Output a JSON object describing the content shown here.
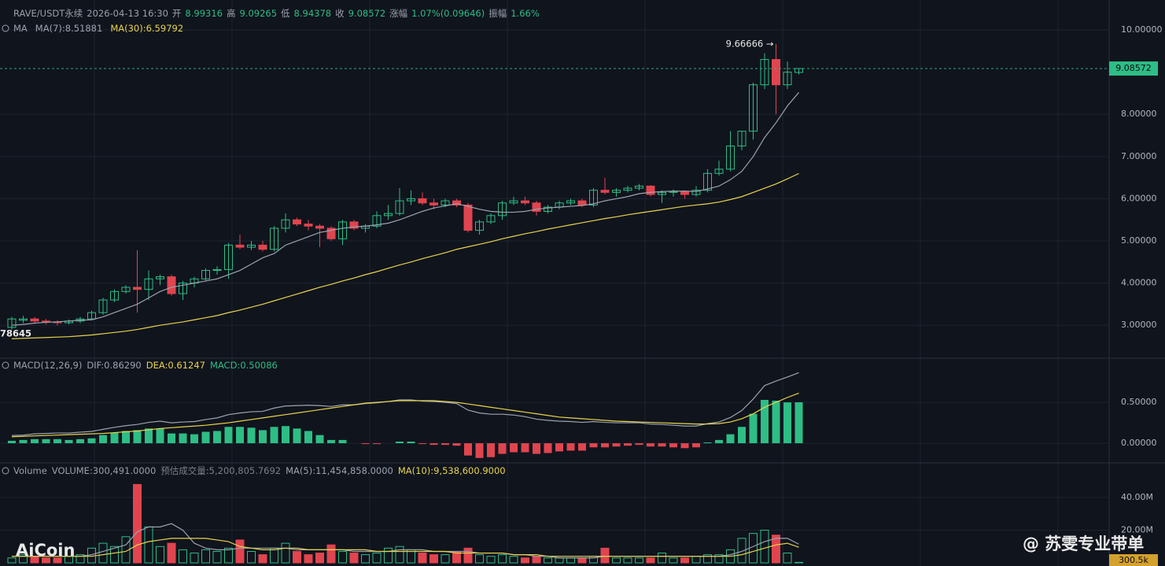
{
  "header": [
    "RAVE/USDT永续",
    "2026-04-13 16:30",
    "开",
    "8.99316",
    "高",
    "9.09265",
    "低",
    "8.94378",
    "收",
    "9.08572",
    "涨幅",
    "1.07%(0.09646)",
    "振幅",
    "1.66%"
  ],
  "watermarks": [
    "AiCoin",
    "@ 苏雯专业带单"
  ],
  "chart_data": [
    {
      "type": "candlestick",
      "title": "MA",
      "max_label": "9.66666 →",
      "min_label": "78645",
      "up_color": "#2ebd85",
      "down_color": "#e0454f",
      "grid": true,
      "ylim": [
        2.22,
        10.71
      ],
      "yticks": [
        {
          "value": 3,
          "label": "3.00000"
        },
        {
          "value": 4,
          "label": "4.00000"
        },
        {
          "value": 5,
          "label": "5.00000"
        },
        {
          "value": 6,
          "label": "6.00000"
        },
        {
          "value": 7,
          "label": "7.00000"
        },
        {
          "value": 8,
          "label": "8.00000"
        },
        {
          "value": 10,
          "label": "10.00000"
        }
      ],
      "candles": [
        [
          2.95,
          3.2,
          2.9,
          3.15
        ],
        [
          3.12,
          3.22,
          3.05,
          3.15
        ],
        [
          3.15,
          3.2,
          3.05,
          3.1
        ],
        [
          3.1,
          3.15,
          3.02,
          3.08
        ],
        [
          3.08,
          3.12,
          3.0,
          3.06
        ],
        [
          3.06,
          3.14,
          3.02,
          3.1
        ],
        [
          3.1,
          3.2,
          3.05,
          3.15
        ],
        [
          3.15,
          3.35,
          3.12,
          3.3
        ],
        [
          3.3,
          3.65,
          3.25,
          3.6
        ],
        [
          3.6,
          3.85,
          3.55,
          3.8
        ],
        [
          3.8,
          3.95,
          3.75,
          3.9
        ],
        [
          3.9,
          4.78,
          3.3,
          3.85
        ],
        [
          3.85,
          4.3,
          3.6,
          4.1
        ],
        [
          4.1,
          4.2,
          3.95,
          4.15
        ],
        [
          4.15,
          4.2,
          3.7,
          3.75
        ],
        [
          3.75,
          4.05,
          3.6,
          4.0
        ],
        [
          4.0,
          4.15,
          3.9,
          4.1
        ],
        [
          4.1,
          4.35,
          4.05,
          4.3
        ],
        [
          4.3,
          4.4,
          4.2,
          4.32
        ],
        [
          4.32,
          4.95,
          4.1,
          4.9
        ],
        [
          4.9,
          5.15,
          4.8,
          4.85
        ],
        [
          4.85,
          5.0,
          4.78,
          4.9
        ],
        [
          4.9,
          5.0,
          4.75,
          4.8
        ],
        [
          4.8,
          5.35,
          4.75,
          5.3
        ],
        [
          5.3,
          5.65,
          5.2,
          5.5
        ],
        [
          5.5,
          5.55,
          5.35,
          5.4
        ],
        [
          5.4,
          5.5,
          5.25,
          5.35
        ],
        [
          5.35,
          5.4,
          4.85,
          5.3
        ],
        [
          5.3,
          5.35,
          5.0,
          5.05
        ],
        [
          5.05,
          5.5,
          4.9,
          5.45
        ],
        [
          5.45,
          5.5,
          5.25,
          5.3
        ],
        [
          5.3,
          5.4,
          5.2,
          5.35
        ],
        [
          5.35,
          5.7,
          5.3,
          5.6
        ],
        [
          5.6,
          5.85,
          5.5,
          5.65
        ],
        [
          5.65,
          6.25,
          5.6,
          5.95
        ],
        [
          5.95,
          6.2,
          5.85,
          6.0
        ],
        [
          6.0,
          6.15,
          5.85,
          5.9
        ],
        [
          5.9,
          6.0,
          5.75,
          5.85
        ],
        [
          5.85,
          6.0,
          5.8,
          5.95
        ],
        [
          5.95,
          6.0,
          5.8,
          5.85
        ],
        [
          5.85,
          5.9,
          5.2,
          5.25
        ],
        [
          5.25,
          5.5,
          5.15,
          5.45
        ],
        [
          5.45,
          5.65,
          5.4,
          5.6
        ],
        [
          5.6,
          5.95,
          5.5,
          5.9
        ],
        [
          5.9,
          6.05,
          5.85,
          5.95
        ],
        [
          5.95,
          6.05,
          5.85,
          5.9
        ],
        [
          5.9,
          5.95,
          5.6,
          5.7
        ],
        [
          5.7,
          5.85,
          5.65,
          5.8
        ],
        [
          5.8,
          5.95,
          5.75,
          5.9
        ],
        [
          5.9,
          6.0,
          5.85,
          5.95
        ],
        [
          5.95,
          6.0,
          5.8,
          5.85
        ],
        [
          5.85,
          6.25,
          5.8,
          6.2
        ],
        [
          6.2,
          6.5,
          6.1,
          6.15
        ],
        [
          6.15,
          6.25,
          6.05,
          6.2
        ],
        [
          6.2,
          6.3,
          6.15,
          6.25
        ],
        [
          6.25,
          6.35,
          6.2,
          6.3
        ],
        [
          6.3,
          6.32,
          6.05,
          6.1
        ],
        [
          6.1,
          6.2,
          5.9,
          6.15
        ],
        [
          6.15,
          6.22,
          6.05,
          6.17
        ],
        [
          6.17,
          6.2,
          6.0,
          6.1
        ],
        [
          6.1,
          6.3,
          6.05,
          6.2
        ],
        [
          6.2,
          6.7,
          6.15,
          6.6
        ],
        [
          6.6,
          6.9,
          6.55,
          6.7
        ],
        [
          6.7,
          7.6,
          6.65,
          7.25
        ],
        [
          7.25,
          7.6,
          7.15,
          7.6
        ],
        [
          7.6,
          8.75,
          7.4,
          8.7
        ],
        [
          8.7,
          9.45,
          8.6,
          9.3
        ],
        [
          9.3,
          9.66666,
          8.0,
          8.7
        ],
        [
          8.7,
          9.25,
          8.6,
          9.0
        ],
        [
          8.99316,
          9.09265,
          8.94378,
          9.08572
        ]
      ],
      "series": [
        {
          "name": "MA(7):8.51881",
          "color": "#9ca3af",
          "values": [
            3.0,
            3.02,
            3.05,
            3.07,
            3.08,
            3.1,
            3.12,
            3.13,
            3.2,
            3.3,
            3.4,
            3.5,
            3.65,
            3.8,
            3.9,
            3.95,
            4.0,
            4.05,
            4.1,
            4.2,
            4.3,
            4.45,
            4.6,
            4.7,
            4.9,
            5.0,
            5.1,
            5.2,
            5.25,
            5.3,
            5.33,
            5.35,
            5.38,
            5.42,
            5.5,
            5.6,
            5.7,
            5.78,
            5.83,
            5.88,
            5.82,
            5.75,
            5.7,
            5.68,
            5.68,
            5.7,
            5.75,
            5.78,
            5.8,
            5.82,
            5.84,
            5.88,
            5.95,
            6.0,
            6.05,
            6.12,
            6.15,
            6.17,
            6.18,
            6.18,
            6.17,
            6.23,
            6.3,
            6.45,
            6.65,
            7.0,
            7.45,
            7.8,
            8.2,
            8.51881
          ]
        },
        {
          "name": "MA(30):6.59792",
          "color": "#e8d44d",
          "values": [
            2.68,
            2.69,
            2.7,
            2.71,
            2.72,
            2.73,
            2.75,
            2.77,
            2.8,
            2.83,
            2.86,
            2.9,
            2.95,
            3.0,
            3.04,
            3.08,
            3.13,
            3.18,
            3.23,
            3.3,
            3.36,
            3.43,
            3.5,
            3.58,
            3.66,
            3.74,
            3.82,
            3.9,
            3.97,
            4.05,
            4.12,
            4.2,
            4.27,
            4.35,
            4.43,
            4.5,
            4.58,
            4.65,
            4.72,
            4.8,
            4.86,
            4.92,
            4.98,
            5.05,
            5.11,
            5.17,
            5.22,
            5.28,
            5.33,
            5.38,
            5.43,
            5.48,
            5.53,
            5.57,
            5.62,
            5.66,
            5.7,
            5.74,
            5.78,
            5.82,
            5.85,
            5.88,
            5.92,
            5.98,
            6.05,
            6.15,
            6.25,
            6.35,
            6.47,
            6.59792
          ]
        }
      ]
    },
    {
      "type": "macd",
      "title": "MACD(12,26,9)",
      "histogram_name": "MACD:0.50086",
      "histogram_color": "#2ebd85",
      "up_color": "#2ebd85",
      "down_color": "#e0454f",
      "ylim": [
        -0.24,
        1.04
      ],
      "yticks": [
        {
          "value": 0,
          "label": "0.00000"
        },
        {
          "value": 0.5,
          "label": "0.50000"
        }
      ],
      "grid": true,
      "values": [
        0.03,
        0.04,
        0.05,
        0.05,
        0.05,
        0.04,
        0.05,
        0.06,
        0.1,
        0.13,
        0.15,
        0.16,
        0.18,
        0.18,
        0.12,
        0.12,
        0.11,
        0.14,
        0.15,
        0.2,
        0.2,
        0.19,
        0.16,
        0.2,
        0.21,
        0.18,
        0.15,
        0.1,
        0.04,
        0.04,
        0,
        -0.01,
        -0.01,
        0.0,
        0.02,
        0.02,
        -0.01,
        -0.02,
        -0.02,
        -0.03,
        -0.15,
        -0.18,
        -0.17,
        -0.13,
        -0.11,
        -0.11,
        -0.13,
        -0.12,
        -0.1,
        -0.09,
        -0.09,
        -0.05,
        -0.05,
        -0.04,
        -0.03,
        -0.02,
        -0.04,
        -0.04,
        -0.05,
        -0.06,
        -0.05,
        0.01,
        0.04,
        0.11,
        0.2,
        0.36,
        0.53,
        0.52,
        0.5,
        0.50086
      ],
      "series": [
        {
          "name": "DIF:0.86290",
          "color": "#9ca3af",
          "values": [
            0.095,
            0.1,
            0.115,
            0.12,
            0.125,
            0.125,
            0.135,
            0.145,
            0.17,
            0.195,
            0.215,
            0.23,
            0.255,
            0.27,
            0.25,
            0.26,
            0.265,
            0.29,
            0.31,
            0.35,
            0.37,
            0.385,
            0.39,
            0.43,
            0.455,
            0.46,
            0.465,
            0.46,
            0.45,
            0.47,
            0.47,
            0.485,
            0.495,
            0.51,
            0.53,
            0.53,
            0.515,
            0.51,
            0.5,
            0.485,
            0.405,
            0.37,
            0.355,
            0.355,
            0.345,
            0.325,
            0.295,
            0.28,
            0.27,
            0.265,
            0.255,
            0.265,
            0.255,
            0.25,
            0.25,
            0.25,
            0.235,
            0.23,
            0.22,
            0.21,
            0.21,
            0.24,
            0.26,
            0.315,
            0.4,
            0.54,
            0.705,
            0.76,
            0.81,
            0.8629
          ]
        },
        {
          "name": "DEA:0.61247",
          "color": "#e8d44d",
          "values": [
            0.08,
            0.085,
            0.09,
            0.095,
            0.1,
            0.105,
            0.11,
            0.115,
            0.12,
            0.13,
            0.14,
            0.15,
            0.165,
            0.18,
            0.19,
            0.2,
            0.21,
            0.22,
            0.235,
            0.25,
            0.27,
            0.29,
            0.31,
            0.33,
            0.35,
            0.37,
            0.39,
            0.41,
            0.43,
            0.45,
            0.47,
            0.49,
            0.5,
            0.51,
            0.52,
            0.52,
            0.52,
            0.52,
            0.51,
            0.5,
            0.48,
            0.46,
            0.44,
            0.42,
            0.4,
            0.38,
            0.36,
            0.34,
            0.32,
            0.31,
            0.3,
            0.29,
            0.28,
            0.27,
            0.265,
            0.26,
            0.255,
            0.25,
            0.245,
            0.24,
            0.235,
            0.235,
            0.24,
            0.26,
            0.3,
            0.36,
            0.44,
            0.5,
            0.56,
            0.61247
          ]
        }
      ]
    },
    {
      "type": "volume",
      "title": "Volume",
      "volume_name": "VOLUME:300,491.0000",
      "estimate": "预估成交量:5,200,805.7692",
      "last_label": "300.5k",
      "up_color": "#2ebd85",
      "down_color": "#e0454f",
      "ylim": [
        0,
        61.2
      ],
      "yticks": [
        {
          "value": 20,
          "label": "20.00M"
        },
        {
          "value": 40,
          "label": "40.00M"
        }
      ],
      "grid": true,
      "values": [
        3,
        5,
        4,
        3,
        3,
        4,
        5,
        9,
        12,
        10,
        16,
        48,
        22,
        10,
        12,
        8,
        6,
        8,
        7,
        9,
        14,
        7,
        5,
        9,
        12,
        7,
        5,
        6,
        11,
        7,
        6,
        5,
        6,
        9,
        10,
        8,
        6,
        5,
        5,
        7,
        9,
        5,
        4,
        5,
        4,
        3,
        4,
        3,
        3,
        3,
        3,
        4,
        9,
        3,
        3,
        3,
        3,
        6,
        3,
        3,
        4,
        5,
        5,
        8,
        15,
        18,
        20,
        17,
        6,
        0.300491
      ],
      "series": [
        {
          "name": "MA(5):11,454,858.0000",
          "color": "#9ca3af",
          "values": [
            4,
            4,
            4,
            4,
            4,
            4,
            4,
            5,
            7,
            9,
            11,
            19,
            22,
            22,
            24,
            20,
            12,
            9,
            8,
            8,
            9,
            9,
            9,
            9,
            9,
            8,
            8,
            8,
            8,
            8,
            7,
            7,
            7,
            7,
            8,
            8,
            8,
            7,
            7,
            7,
            7,
            6,
            6,
            6,
            5,
            5,
            4,
            4,
            3,
            3,
            3,
            3,
            4,
            4,
            4,
            4,
            4,
            4,
            4,
            4,
            4,
            4,
            4,
            5,
            7,
            10,
            13,
            15,
            15,
            11.454858
          ]
        },
        {
          "name": "MA(10):9,538,600.9000",
          "color": "#e8d44d",
          "values": [
            4,
            4,
            4,
            4,
            4,
            4,
            4,
            4,
            5,
            6,
            7,
            11,
            13,
            14,
            15,
            15,
            15,
            15,
            14,
            13,
            10,
            9,
            8,
            8,
            9,
            9,
            8,
            8,
            8,
            8,
            8,
            8,
            7,
            7,
            7,
            7,
            7,
            7,
            7,
            6,
            6,
            6,
            6,
            6,
            5,
            5,
            5,
            4,
            4,
            4,
            4,
            4,
            4,
            4,
            4,
            4,
            4,
            4,
            4,
            4,
            4,
            4,
            4,
            4,
            5,
            7,
            9,
            11,
            12,
            9.5386009
          ]
        }
      ]
    }
  ]
}
